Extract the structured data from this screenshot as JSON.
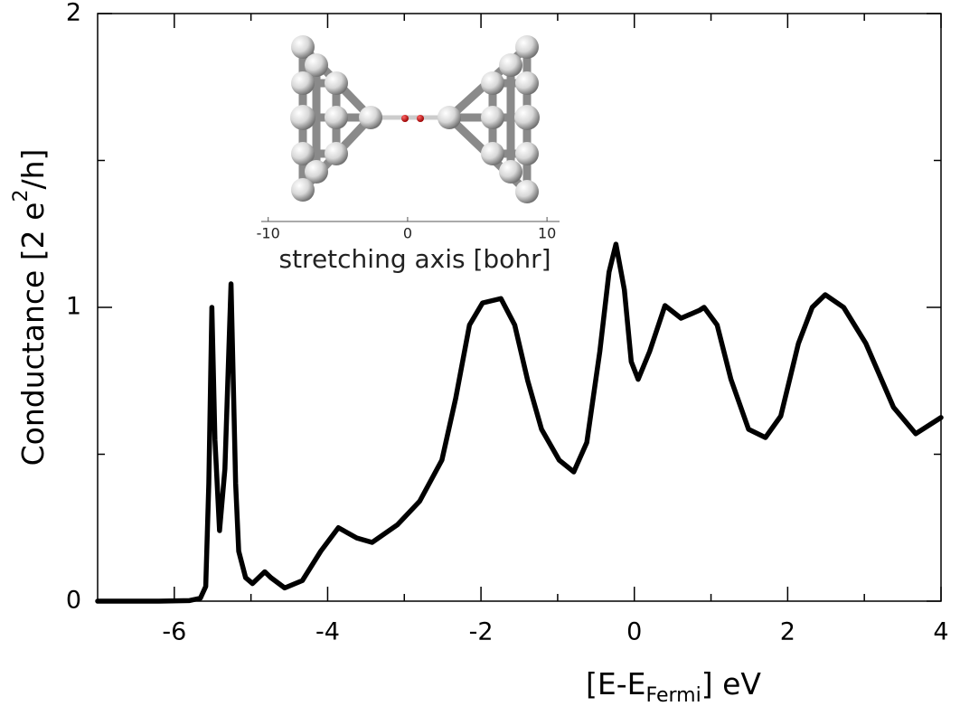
{
  "chart_data": {
    "type": "line",
    "x_label": [
      "[E-E",
      "Fermi",
      "] eV"
    ],
    "y_label": [
      "Conductance [2 e",
      "2",
      "/h]"
    ],
    "xlim": [
      -7,
      4
    ],
    "xticks": [
      -6,
      -4,
      -2,
      0,
      2,
      4
    ],
    "ylim": [
      0,
      2
    ],
    "yticks": [
      0,
      1,
      2
    ],
    "series": [
      {
        "color": "#000000",
        "x": [
          -7,
          -6.2,
          -5.8,
          -5.66,
          -5.59,
          -5.55,
          -5.51,
          -5.47,
          -5.41,
          -5.34,
          -5.26,
          -5.2,
          -5.16,
          -5.07,
          -4.98,
          -4.82,
          -4.74,
          -4.56,
          -4.33,
          -4.09,
          -3.86,
          -3.62,
          -3.42,
          -3.09,
          -2.8,
          -2.51,
          -2.33,
          -2.15,
          -1.98,
          -1.74,
          -1.56,
          -1.39,
          -1.21,
          -0.98,
          -0.79,
          -0.62,
          -0.45,
          -0.33,
          -0.24,
          -0.13,
          -0.04,
          0.05,
          0.2,
          0.4,
          0.61,
          0.85,
          0.91,
          1.08,
          1.26,
          1.49,
          1.71,
          1.91,
          2.14,
          2.32,
          2.49,
          2.73,
          3.02,
          3.38,
          3.67,
          4.0
        ],
        "values": [
          0,
          0,
          0.002,
          0.01,
          0.05,
          0.4,
          1.0,
          0.55,
          0.24,
          0.45,
          1.08,
          0.4,
          0.17,
          0.08,
          0.06,
          0.1,
          0.08,
          0.045,
          0.07,
          0.17,
          0.25,
          0.215,
          0.2,
          0.26,
          0.34,
          0.48,
          0.69,
          0.94,
          1.015,
          1.03,
          0.94,
          0.75,
          0.585,
          0.48,
          0.44,
          0.54,
          0.85,
          1.12,
          1.215,
          1.06,
          0.815,
          0.755,
          0.85,
          1.006,
          0.963,
          0.99,
          1.0,
          0.94,
          0.755,
          0.585,
          0.557,
          0.63,
          0.877,
          1.0,
          1.043,
          1.0,
          0.877,
          0.66,
          0.57,
          0.625
        ]
      }
    ],
    "inset": {
      "x_label": "stretching axis [bohr]",
      "xlim": [
        -10.5,
        10.9
      ],
      "xticks": [
        -10,
        0,
        10
      ]
    }
  }
}
